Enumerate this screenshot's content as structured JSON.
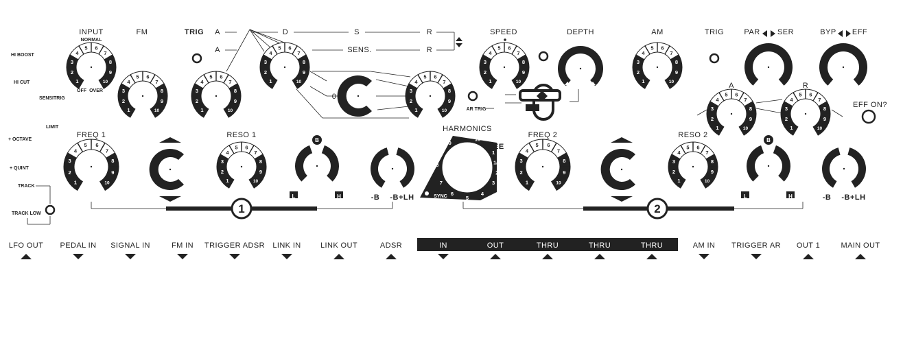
{
  "labels": {
    "input": "INPUT",
    "normal": "NORMAL",
    "off": "OFF",
    "over": "OVER",
    "fm": "FM",
    "trig": "TRIG",
    "a1": "A",
    "d": "D",
    "s": "S",
    "r1": "R",
    "a2": "A",
    "sens": "SENS.",
    "r2": "R",
    "zero": "0",
    "ar_trig": "AR TRIG",
    "speed": "SPEED",
    "depth": "DEPTH",
    "am": "AM",
    "trig2": "TRIG",
    "par": "PAR",
    "ser": "SER",
    "byp": "BYP",
    "eff": "EFF",
    "a_env": "A",
    "r_env": "R",
    "eff_on": "EFF ON?",
    "hi_boost": "HI BOOST",
    "hi_cut": "HI CUT",
    "sensitrig": "SENSITRIG",
    "limit": "LIMIT",
    "octave": "+ OCTAVE",
    "quint": "+ QUINT",
    "track": "TRACK",
    "track_low": "TRACK LOW",
    "freq1": "FREQ 1",
    "reso1": "RESO 1",
    "freq2": "FREQ 2",
    "reso2": "RESO 2",
    "harmonics": "HARMONICS",
    "free": "FREE",
    "sync": "SYNC",
    "minus_b": "-B",
    "minus_b_lh": "-B+LH",
    "minus_b2": "-B",
    "minus_b_lh2": "-B+LH",
    "b_top": "B",
    "l": "L",
    "h": "H",
    "b_top2": "B",
    "l2": "L",
    "h2": "H",
    "plus": "+",
    "minus": "-",
    "ch1": "1",
    "ch2": "2"
  },
  "knob_scale": [
    "1",
    "2",
    "3",
    "4",
    "5",
    "6",
    "7",
    "8",
    "9",
    "10"
  ],
  "harmonics_scale": [
    "1",
    "1/2",
    "2",
    "3",
    "4",
    "5",
    "6",
    "7",
    "8",
    "9",
    "16"
  ],
  "jacks": [
    {
      "label": "LFO OUT",
      "dir": "up"
    },
    {
      "label": "PEDAL IN",
      "dir": "down"
    },
    {
      "label": "SIGNAL IN",
      "dir": "down"
    },
    {
      "label": "FM IN",
      "dir": "down"
    },
    {
      "label": "TRIGGER ADSR",
      "dir": "down"
    },
    {
      "label": "LINK IN",
      "dir": "down"
    },
    {
      "label": "LINK OUT",
      "dir": "up"
    },
    {
      "label": "ADSR",
      "dir": "up"
    },
    {
      "label": "IN",
      "dir": "down",
      "dark": true
    },
    {
      "label": "OUT",
      "dir": "up",
      "dark": true
    },
    {
      "label": "THRU",
      "dir": "up",
      "dark": true
    },
    {
      "label": "THRU",
      "dir": "up",
      "dark": true
    },
    {
      "label": "THRU",
      "dir": "up",
      "dark": true
    },
    {
      "label": "AM IN",
      "dir": "down"
    },
    {
      "label": "TRIGGER AR",
      "dir": "down"
    },
    {
      "label": "OUT 1",
      "dir": "up"
    },
    {
      "label": "MAIN OUT",
      "dir": "up"
    }
  ],
  "colors": {
    "ink": "#222222",
    "paper": "#ffffff"
  }
}
